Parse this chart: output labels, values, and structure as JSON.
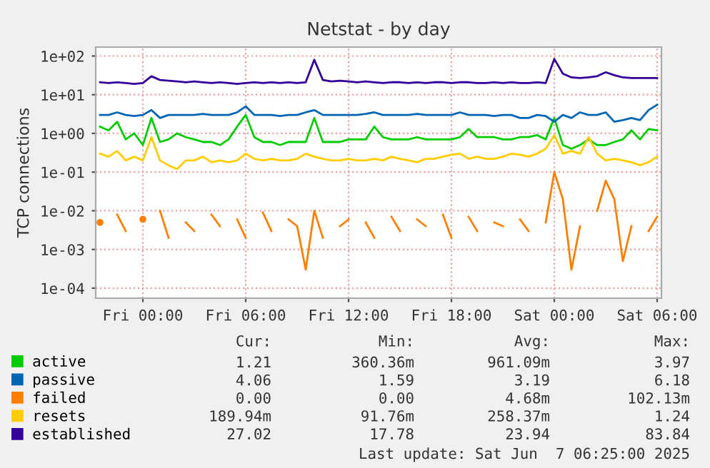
{
  "chart_data": {
    "type": "line",
    "title": "Netstat - by day",
    "ylabel": "TCP connections",
    "x": [
      "2025-06-05T21:30",
      "2025-06-05T22:00",
      "2025-06-05T22:30",
      "2025-06-05T23:00",
      "2025-06-05T23:30",
      "2025-06-06T00:00",
      "2025-06-06T00:30",
      "2025-06-06T01:00",
      "2025-06-06T01:30",
      "2025-06-06T02:00",
      "2025-06-06T02:30",
      "2025-06-06T03:00",
      "2025-06-06T03:30",
      "2025-06-06T04:00",
      "2025-06-06T04:30",
      "2025-06-06T05:00",
      "2025-06-06T05:30",
      "2025-06-06T06:00",
      "2025-06-06T06:30",
      "2025-06-06T07:00",
      "2025-06-06T07:30",
      "2025-06-06T08:00",
      "2025-06-06T08:30",
      "2025-06-06T09:00",
      "2025-06-06T09:30",
      "2025-06-06T10:00",
      "2025-06-06T10:30",
      "2025-06-06T11:00",
      "2025-06-06T11:30",
      "2025-06-06T12:00",
      "2025-06-06T12:30",
      "2025-06-06T13:00",
      "2025-06-06T13:30",
      "2025-06-06T14:00",
      "2025-06-06T14:30",
      "2025-06-06T15:00",
      "2025-06-06T15:30",
      "2025-06-06T16:00",
      "2025-06-06T16:30",
      "2025-06-06T17:00",
      "2025-06-06T17:30",
      "2025-06-06T18:00",
      "2025-06-06T18:30",
      "2025-06-06T19:00",
      "2025-06-06T19:30",
      "2025-06-06T20:00",
      "2025-06-06T20:30",
      "2025-06-06T21:00",
      "2025-06-06T21:30",
      "2025-06-06T22:00",
      "2025-06-06T22:30",
      "2025-06-06T23:00",
      "2025-06-06T23:30",
      "2025-06-07T00:00",
      "2025-06-07T00:30",
      "2025-06-07T01:00",
      "2025-06-07T01:30",
      "2025-06-07T02:00",
      "2025-06-07T02:30",
      "2025-06-07T03:00",
      "2025-06-07T03:30",
      "2025-06-07T04:00",
      "2025-06-07T04:30",
      "2025-06-07T05:00",
      "2025-06-07T05:30",
      "2025-06-07T06:00"
    ],
    "series": [
      {
        "name": "active",
        "color": "#00cc00",
        "values": [
          1.5,
          1.2,
          2,
          0.7,
          1,
          0.5,
          2.5,
          0.6,
          0.7,
          1,
          0.8,
          0.7,
          0.6,
          0.6,
          0.5,
          0.7,
          1.5,
          3,
          0.8,
          0.6,
          0.6,
          0.5,
          0.6,
          0.6,
          0.6,
          2.5,
          0.6,
          0.6,
          0.6,
          0.7,
          0.7,
          0.7,
          1.5,
          0.8,
          0.7,
          0.7,
          0.7,
          0.8,
          0.7,
          0.7,
          0.7,
          0.7,
          0.8,
          1.3,
          0.8,
          0.8,
          0.8,
          0.7,
          0.7,
          0.8,
          0.8,
          0.9,
          0.7,
          2.5,
          0.5,
          0.4,
          0.5,
          0.7,
          0.5,
          0.5,
          0.6,
          0.7,
          1.2,
          0.7,
          1.3,
          1.2
        ]
      },
      {
        "name": "passive",
        "color": "#0066b3",
        "values": [
          3,
          3,
          3.5,
          3,
          2.8,
          3,
          4,
          2.5,
          3,
          3,
          3,
          3,
          3.2,
          3,
          3,
          3,
          3.5,
          5,
          3,
          3,
          3,
          2.8,
          3,
          3,
          3.5,
          4,
          3,
          3,
          3,
          3,
          3,
          3.2,
          3.5,
          3,
          3,
          3,
          3,
          3.2,
          3,
          3,
          3,
          3,
          3.5,
          3,
          3,
          3,
          2.8,
          3,
          3,
          2.5,
          2.5,
          3,
          2.8,
          2,
          3,
          2.5,
          3.5,
          3,
          3,
          3.5,
          2,
          2.2,
          2.5,
          2.2,
          4,
          5.5
        ]
      },
      {
        "name": "failed",
        "color": "#ff8000",
        "values": [
          0.005,
          null,
          0.008,
          0.003,
          null,
          0.006,
          null,
          0.01,
          0.002,
          null,
          0.005,
          0.003,
          null,
          0.008,
          0.004,
          null,
          0.006,
          0.002,
          null,
          0.009,
          0.003,
          null,
          0.006,
          0.004,
          0.0003,
          0.01,
          0.002,
          null,
          0.004,
          0.006,
          null,
          0.005,
          0.002,
          null,
          0.007,
          0.003,
          null,
          0.006,
          0.004,
          null,
          0.008,
          0.002,
          null,
          0.007,
          0.003,
          null,
          0.005,
          0.004,
          null,
          0.006,
          0.003,
          null,
          0.005,
          0.1,
          0.02,
          0.0003,
          0.004,
          null,
          0.01,
          0.06,
          0.02,
          0.0005,
          0.004,
          null,
          0.003,
          0.007
        ]
      },
      {
        "name": "resets",
        "color": "#ffcc00",
        "values": [
          0.3,
          0.25,
          0.35,
          0.2,
          0.25,
          0.2,
          0.8,
          0.2,
          0.15,
          0.12,
          0.2,
          0.2,
          0.25,
          0.18,
          0.2,
          0.18,
          0.2,
          0.3,
          0.22,
          0.2,
          0.22,
          0.2,
          0.2,
          0.22,
          0.3,
          0.25,
          0.22,
          0.2,
          0.2,
          0.22,
          0.2,
          0.2,
          0.22,
          0.2,
          0.25,
          0.22,
          0.2,
          0.18,
          0.22,
          0.22,
          0.25,
          0.28,
          0.3,
          0.22,
          0.25,
          0.22,
          0.22,
          0.25,
          0.3,
          0.28,
          0.25,
          0.3,
          0.4,
          0.9,
          0.3,
          0.35,
          0.3,
          0.8,
          0.3,
          0.2,
          0.22,
          0.2,
          0.18,
          0.15,
          0.18,
          0.25
        ]
      },
      {
        "name": "established",
        "color": "#330099",
        "values": [
          21,
          20,
          21,
          20,
          19,
          20,
          30,
          24,
          23,
          22,
          21,
          22,
          21,
          20,
          21,
          20,
          19,
          20,
          21,
          20,
          21,
          20,
          21,
          20,
          21,
          80,
          24,
          22,
          23,
          22,
          21,
          22,
          21,
          20,
          21,
          21,
          20,
          21,
          20,
          21,
          21,
          20,
          21,
          21,
          20,
          20,
          21,
          20,
          21,
          20,
          20,
          21,
          20,
          84,
          35,
          28,
          27,
          28,
          30,
          38,
          32,
          28,
          27,
          27,
          27,
          27
        ]
      }
    ],
    "log": "y",
    "xlim": [
      "2025-06-05T21:15",
      "2025-06-07T06:15"
    ],
    "ylim": [
      5.5e-05,
      170
    ],
    "xticks": [
      {
        "value": "2025-06-06T00:00",
        "label": "Fri 00:00"
      },
      {
        "value": "2025-06-06T06:00",
        "label": "Fri 06:00"
      },
      {
        "value": "2025-06-06T12:00",
        "label": "Fri 12:00"
      },
      {
        "value": "2025-06-06T18:00",
        "label": "Fri 18:00"
      },
      {
        "value": "2025-06-07T00:00",
        "label": "Sat 00:00"
      },
      {
        "value": "2025-06-07T06:00",
        "label": "Sat 06:00"
      }
    ],
    "yticks": [
      {
        "value": 0.0001,
        "label": "1e-04"
      },
      {
        "value": 0.001,
        "label": "1e-03"
      },
      {
        "value": 0.01,
        "label": "1e-02"
      },
      {
        "value": 0.1,
        "label": "1e-01"
      },
      {
        "value": 1,
        "label": "1e+00"
      },
      {
        "value": 10,
        "label": "1e+01"
      },
      {
        "value": 100,
        "label": "1e+02"
      }
    ],
    "grid": true,
    "legend": "bottom left",
    "marker": "none",
    "line_style": "solid",
    "annotations": [
      "Cur:",
      "Min:",
      "Avg:",
      "Max:",
      "1.21",
      "360.36m",
      "961.09m",
      "3.97",
      "4.06",
      "1.59",
      "3.19",
      "6.18",
      "0.00",
      "0.00",
      "4.68m",
      "102.13m",
      "189.94m",
      "91.76m",
      "258.37m",
      "1.24",
      "27.02",
      "17.78",
      "23.94",
      "83.84",
      "Last update: Sat Jun  7 06:25:00 2025"
    ]
  }
}
